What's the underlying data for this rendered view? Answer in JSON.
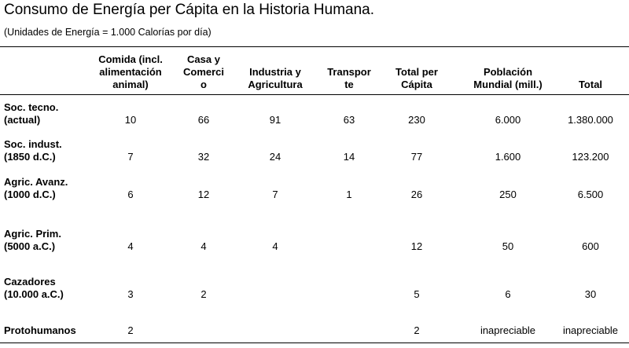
{
  "title": "Consumo de Energía per Cápita en la Historia Humana.",
  "subtitle": "(Unidades de Energía = 1.000 Calorías por día)",
  "table": {
    "headers": [
      {
        "lines": [
          "Comida (incl.",
          "alimentación",
          "animal)"
        ]
      },
      {
        "lines": [
          "Casa y",
          "Comerci",
          "o"
        ]
      },
      {
        "lines": [
          "Industria y",
          "Agricultura"
        ]
      },
      {
        "lines": [
          "Transpor",
          "te"
        ]
      },
      {
        "lines": [
          "Total per",
          "Cápita"
        ]
      },
      {
        "lines": [
          "Población",
          "Mundial (mill.)"
        ]
      },
      {
        "lines": [
          "Total"
        ]
      }
    ],
    "rows": [
      {
        "label": [
          "Soc. tecno.",
          "(actual)"
        ],
        "values": [
          "10",
          "66",
          "91",
          "63",
          "230",
          "6.000",
          "1.380.000"
        ]
      },
      {
        "label": [
          "Soc. indust.",
          "(1850 d.C.)"
        ],
        "values": [
          "7",
          "32",
          "24",
          "14",
          "77",
          "1.600",
          "123.200"
        ]
      },
      {
        "label": [
          "Agric. Avanz.",
          "(1000 d.C.)"
        ],
        "values": [
          "6",
          "12",
          "7",
          "1",
          "26",
          "250",
          "6.500"
        ]
      },
      {
        "label": [
          "Agric. Prim.",
          "(5000 a.C.)"
        ],
        "values": [
          "4",
          "4",
          "4",
          "",
          "12",
          "50",
          "600"
        ]
      },
      {
        "label": [
          "Cazadores",
          "(10.000 a.C.)"
        ],
        "values": [
          "3",
          "2",
          "",
          "",
          "5",
          "6",
          "30"
        ]
      },
      {
        "label": [
          "Protohumanos"
        ],
        "values": [
          "2",
          "",
          "",
          "",
          "2",
          "inapreciable",
          "inapreciable"
        ]
      }
    ]
  }
}
